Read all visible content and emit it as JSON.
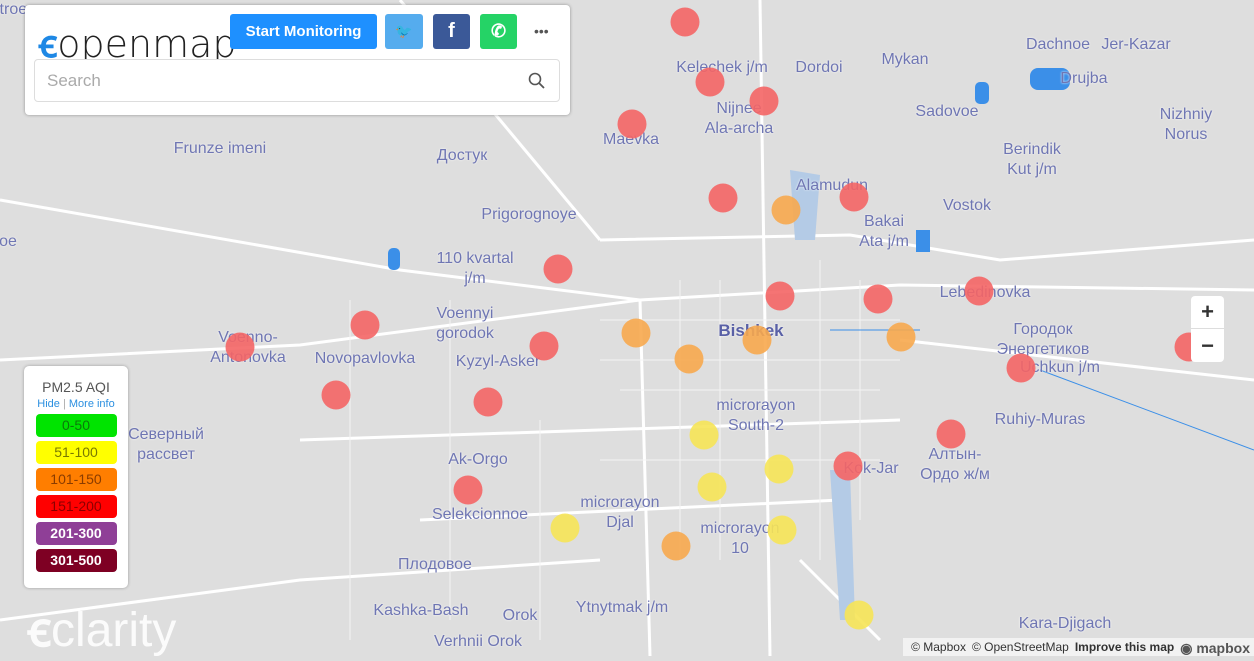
{
  "header": {
    "logo_text": "openmap",
    "start_label": "Start Monitoring",
    "social": [
      {
        "name": "twitter",
        "glyph": "🐦",
        "color": "#55acee"
      },
      {
        "name": "facebook",
        "glyph": "f",
        "color": "#3b5998"
      },
      {
        "name": "whatsapp",
        "glyph": "✆",
        "color": "#25d366"
      }
    ],
    "more": "•••"
  },
  "search": {
    "placeholder": "Search",
    "value": ""
  },
  "legend": {
    "title": "PM2.5 AQI",
    "hide": "Hide",
    "more_info": "More info",
    "items": [
      {
        "label": "0-50",
        "color": "#00e400",
        "text": "#0a7a0a"
      },
      {
        "label": "51-100",
        "color": "#ffff00",
        "text": "#7a7a00"
      },
      {
        "label": "101-150",
        "color": "#ff7e00",
        "text": "#8a3c00"
      },
      {
        "label": "151-200",
        "color": "#ff0000",
        "text": "#8a0000"
      },
      {
        "label": "201-300",
        "color": "#8f3f97",
        "text": "#ffffff"
      },
      {
        "label": "301-500",
        "color": "#7e0023",
        "text": "#ffffff"
      }
    ]
  },
  "aqi_colors": {
    "unhealthy": "#f46565",
    "sensitive": "#f7a94e",
    "moderate": "#f6e456"
  },
  "places": [
    "Kelechek j/m",
    "Dordoi",
    "Dachnoe",
    "Jer-Kazar",
    "Mykan",
    "Drujba",
    "Nijnee\nAla-archa",
    "Sadovoe",
    "Nizhniy\nNorus",
    "Maevka",
    "Berindik\nKut j/m",
    "Frunze imeni",
    "Достук",
    "Alamudun",
    "Bakai\nAta j/m",
    "Vostok",
    "Prigorognoye",
    "110 kvartal\nj/m",
    "Lebedinovka",
    "Voenno-\nAntonovka",
    "Voennyi\ngorodok",
    "Городок\nЭнергетиков",
    "Bishkek",
    "Novopavlovka",
    "Kyzyl-Asker",
    "Uchkun j/m",
    "microrayon\nSouth-2",
    "Ruhiy-Muras",
    "Северный\nрассвет",
    "Алтын-\nОрдо ж/м",
    "Ak-Orgo",
    "Kok-Jar",
    "microrayon\nDjal",
    "microrayon\n10",
    "Selekcionnoe",
    "Плодовое",
    "Kashka-Bash",
    "Orok",
    "Ytnytmak j/m",
    "Verhnii Orok",
    "Kara-Djigach",
    "Stroe",
    "oe"
  ],
  "sensors": [
    "unhealthy",
    "unhealthy",
    "unhealthy",
    "unhealthy",
    "unhealthy",
    "unhealthy",
    "unhealthy",
    "unhealthy",
    "unhealthy",
    "unhealthy",
    "unhealthy",
    "unhealthy",
    "unhealthy",
    "unhealthy",
    "unhealthy",
    "unhealthy",
    "unhealthy",
    "unhealthy",
    "unhealthy",
    "unhealthy",
    "sensitive",
    "sensitive",
    "sensitive",
    "sensitive",
    "sensitive",
    "sensitive",
    "moderate",
    "moderate",
    "moderate",
    "moderate",
    "moderate",
    "moderate"
  ],
  "watermark": "clarity",
  "zoom": {
    "in": "+",
    "out": "−"
  },
  "attribution": {
    "mapbox": "© Mapbox",
    "osm": "© OpenStreetMap",
    "improve": "Improve this map",
    "brand": "mapbox"
  }
}
